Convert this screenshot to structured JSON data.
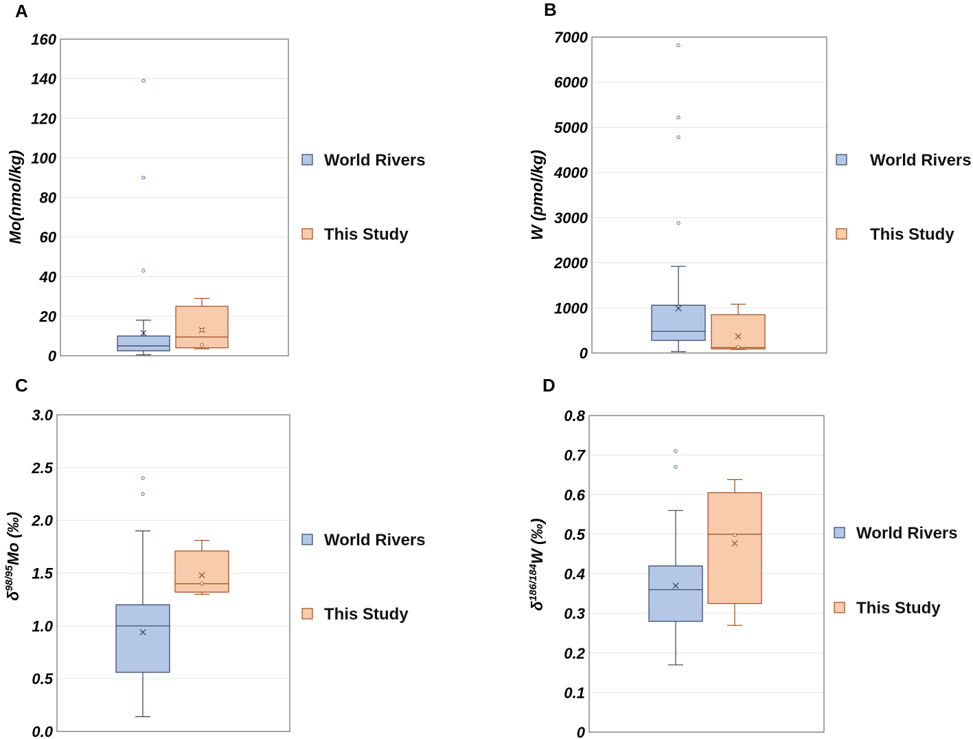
{
  "colors": {
    "world_fill": "#b4c7e7",
    "world_stroke": "#2f3f63",
    "study_fill": "#f8cbad",
    "study_stroke": "#9c4a1c",
    "outlier_world": "#4a67a8",
    "outlier_study": "#9c4a1c",
    "grid": "#e3e3e3",
    "frame": "#6a6a6a"
  },
  "chart_data": [
    {
      "id": "A",
      "panel_label": "A",
      "type": "box",
      "ylabel": "Mo(nmol/kg)",
      "ylim": [
        0,
        160
      ],
      "yticks": [
        0,
        20,
        40,
        60,
        80,
        100,
        120,
        140,
        160
      ],
      "ytick_labels": [
        "0",
        "20",
        "40",
        "60",
        "80",
        "100",
        "120",
        "140",
        "160"
      ],
      "legend": [
        "World Rivers",
        "This Study"
      ],
      "series": [
        {
          "name": "World Rivers",
          "whisker_low": 0.5,
          "q1": 2.5,
          "median": 5,
          "q3": 10,
          "whisker_high": 18,
          "mean": 11.5,
          "inner_points": [],
          "outliers": [
            43,
            90,
            139
          ]
        },
        {
          "name": "This Study",
          "whisker_low": 3.5,
          "q1": 4,
          "median": 9.5,
          "q3": 25,
          "whisker_high": 29,
          "mean": 13,
          "inner_points": [
            5.5,
            13
          ],
          "outliers": []
        }
      ]
    },
    {
      "id": "B",
      "panel_label": "B",
      "type": "box",
      "ylabel": "W (pmol/kg)",
      "ylim": [
        0,
        7000
      ],
      "yticks": [
        0,
        1000,
        2000,
        3000,
        4000,
        5000,
        6000,
        7000
      ],
      "ytick_labels": [
        "0",
        "1000",
        "2000",
        "3000",
        "4000",
        "5000",
        "6000",
        "7000"
      ],
      "legend": [
        "World Rivers",
        "This Study"
      ],
      "series": [
        {
          "name": "World Rivers",
          "whisker_low": 30,
          "q1": 280,
          "median": 480,
          "q3": 1060,
          "whisker_high": 1920,
          "mean": 990,
          "inner_points": [],
          "outliers": [
            2880,
            4780,
            5220,
            6820
          ]
        },
        {
          "name": "This Study",
          "whisker_low": 80,
          "q1": 90,
          "median": 120,
          "q3": 850,
          "whisker_high": 1080,
          "mean": 370,
          "inner_points": [
            130
          ],
          "outliers": []
        }
      ]
    },
    {
      "id": "C",
      "panel_label": "C",
      "type": "box",
      "ylabel_prefix": "δ",
      "ylabel_sup": "98/95",
      "ylabel_suffix": "Mo (‰)",
      "ylim": [
        0,
        3
      ],
      "yticks": [
        0,
        0.5,
        1,
        1.5,
        2,
        2.5,
        3
      ],
      "ytick_labels": [
        "0.0",
        "0.5",
        "1.0",
        "1.5",
        "2.0",
        "2.5",
        "3.0"
      ],
      "legend": [
        "World Rivers",
        "This Study"
      ],
      "series": [
        {
          "name": "World Rivers",
          "whisker_low": 0.14,
          "q1": 0.56,
          "median": 1.0,
          "q3": 1.2,
          "whisker_high": 1.9,
          "mean": 0.94,
          "inner_points": [],
          "outliers": [
            2.25,
            2.4
          ]
        },
        {
          "name": "This Study",
          "whisker_low": 1.3,
          "q1": 1.32,
          "median": 1.4,
          "q3": 1.71,
          "whisker_high": 1.81,
          "mean": 1.48,
          "inner_points": [
            1.4
          ],
          "outliers": []
        }
      ]
    },
    {
      "id": "D",
      "panel_label": "D",
      "type": "box",
      "ylabel_prefix": "δ",
      "ylabel_sup": "186/184",
      "ylabel_suffix": "W (‰)",
      "ylim": [
        0,
        0.8
      ],
      "yticks": [
        0,
        0.1,
        0.2,
        0.3,
        0.4,
        0.5,
        0.6,
        0.7,
        0.8
      ],
      "ytick_labels": [
        "0",
        "0.1",
        "0.2",
        "0.3",
        "0.4",
        "0.5",
        "0.6",
        "0.7",
        "0.8"
      ],
      "legend": [
        "World Rivers",
        "This Study"
      ],
      "series": [
        {
          "name": "World Rivers",
          "whisker_low": 0.17,
          "q1": 0.28,
          "median": 0.36,
          "q3": 0.42,
          "whisker_high": 0.56,
          "mean": 0.37,
          "inner_points": [],
          "outliers": [
            0.67,
            0.71
          ]
        },
        {
          "name": "This Study",
          "whisker_low": 0.27,
          "q1": 0.325,
          "median": 0.5,
          "q3": 0.605,
          "whisker_high": 0.638,
          "mean": 0.477,
          "inner_points": [
            0.498
          ],
          "outliers": []
        }
      ]
    }
  ]
}
